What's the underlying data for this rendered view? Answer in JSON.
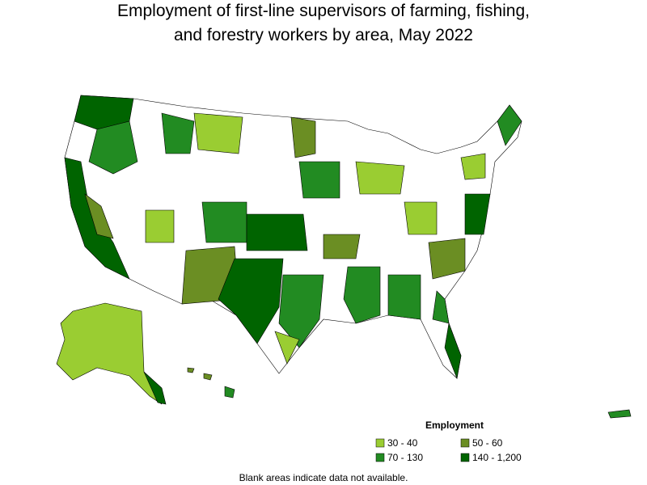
{
  "title_lines": [
    "Employment of first-line supervisors of farming, fishing,",
    "and forestry workers by area, May 2022"
  ],
  "legend": {
    "title": "Employment",
    "items": [
      {
        "label": "30 - 40",
        "color": "#9acd32"
      },
      {
        "label": "50 - 60",
        "color": "#6b8e23"
      },
      {
        "label": "70 - 130",
        "color": "#228b22"
      },
      {
        "label": "140 - 1,200",
        "color": "#006400"
      }
    ]
  },
  "note": "Blank areas indicate data not available."
}
